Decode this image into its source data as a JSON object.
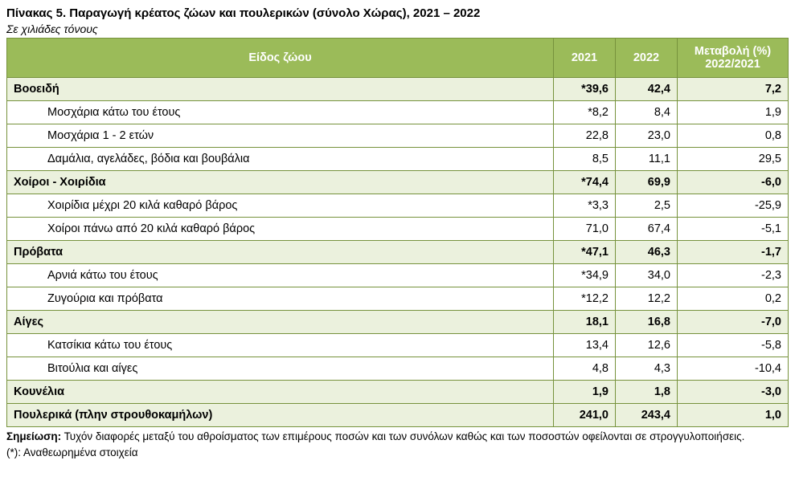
{
  "title": "Πίνακας 5. Παραγωγή κρέατος ζώων και πουλερικών (σύνολο Χώρας), 2021 – 2022",
  "subtitle": "Σε χιλιάδες τόνους",
  "columns": {
    "species": "Είδος ζώου",
    "y2021": "2021",
    "y2022": "2022",
    "change_line1": "Μεταβολή (%)",
    "change_line2": "2022/2021"
  },
  "rows": [
    {
      "label": "Βοοειδή",
      "v2021": "*39,6",
      "v2022": "42,4",
      "change": "7,2",
      "type": "cat"
    },
    {
      "label": "Μοσχάρια κάτω του έτους",
      "v2021": "*8,2",
      "v2022": "8,4",
      "change": "1,9",
      "type": "sub"
    },
    {
      "label": "Μοσχάρια 1 - 2 ετών",
      "v2021": "22,8",
      "v2022": "23,0",
      "change": "0,8",
      "type": "sub"
    },
    {
      "label": "Δαμάλια, αγελάδες, βόδια και βουβάλια",
      "v2021": "8,5",
      "v2022": "11,1",
      "change": "29,5",
      "type": "sub"
    },
    {
      "label": "Χοίροι - Χοιρίδια",
      "v2021": "*74,4",
      "v2022": "69,9",
      "change": "-6,0",
      "type": "cat"
    },
    {
      "label": "Χοιρίδια μέχρι 20 κιλά καθαρό βάρος",
      "v2021": "*3,3",
      "v2022": "2,5",
      "change": "-25,9",
      "type": "sub"
    },
    {
      "label": "Χοίροι πάνω από 20 κιλά καθαρό βάρος",
      "v2021": "71,0",
      "v2022": "67,4",
      "change": "-5,1",
      "type": "sub"
    },
    {
      "label": "Πρόβατα",
      "v2021": "*47,1",
      "v2022": "46,3",
      "change": "-1,7",
      "type": "cat"
    },
    {
      "label": "Αρνιά κάτω του έτους",
      "v2021": "*34,9",
      "v2022": "34,0",
      "change": "-2,3",
      "type": "sub"
    },
    {
      "label": "Ζυγούρια και πρόβατα",
      "v2021": "*12,2",
      "v2022": "12,2",
      "change": "0,2",
      "type": "sub"
    },
    {
      "label": "Αίγες",
      "v2021": "18,1",
      "v2022": "16,8",
      "change": "-7,0",
      "type": "cat"
    },
    {
      "label": "Κατσίκια κάτω του έτους",
      "v2021": "13,4",
      "v2022": "12,6",
      "change": "-5,8",
      "type": "sub"
    },
    {
      "label": "Βιτούλια και αίγες",
      "v2021": "4,8",
      "v2022": "4,3",
      "change": "-10,4",
      "type": "sub"
    },
    {
      "label": "Κουνέλια",
      "v2021": "1,9",
      "v2022": "1,8",
      "change": "-3,0",
      "type": "cat"
    },
    {
      "label": "Πουλερικά (πλην στρουθοκαμήλων)",
      "v2021": "241,0",
      "v2022": "243,4",
      "change": "1,0",
      "type": "cat"
    }
  ],
  "note": {
    "label": "Σημείωση:",
    "text": " Τυχόν διαφορές μεταξύ του αθροίσματος των επιμέρους ποσών και των συνόλων καθώς και των ποσοστών οφείλονται σε στρογγυλοποιήσεις.",
    "revised": "(*): Αναθεωρημένα στοιχεία"
  }
}
